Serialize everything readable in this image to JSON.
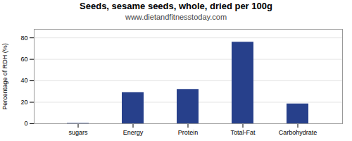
{
  "chart_data": {
    "type": "bar",
    "title": "Seeds, sesame seeds, whole, dried per 100g",
    "subtitle": "www.dietandfitnesstoday.com",
    "categories": [
      "sugars",
      "Energy",
      "Protein",
      "Total-Fat",
      "Carbohydrate"
    ],
    "values": [
      0.4,
      29,
      32,
      76,
      18.5
    ],
    "color": "#27408B",
    "ylabel": "Percentage of RDH (%)",
    "ylim": [
      0,
      88
    ],
    "yticks": [
      0,
      20,
      40,
      60,
      80
    ],
    "grid": true
  }
}
